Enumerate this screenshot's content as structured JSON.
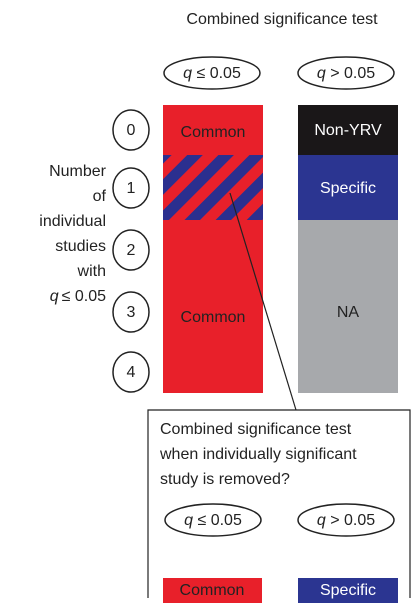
{
  "title": "Combined significance test",
  "header_tests": [
    {
      "var": "q",
      "cond": "≤ 0.05"
    },
    {
      "var": "q",
      "cond": "> 0.05"
    }
  ],
  "left_label": {
    "lines": [
      "Number",
      "of",
      "individual",
      "studies",
      "with"
    ],
    "last_var": "q",
    "last_cond": "≤ 0.05"
  },
  "study_counts": [
    "0",
    "1",
    "2",
    "3",
    "4"
  ],
  "significant_column": {
    "labels": [
      "Common",
      "Common"
    ]
  },
  "nonsignificant_column": {
    "labels": [
      "Non-YRV",
      "Specific",
      "NA"
    ]
  },
  "inset": {
    "lines": [
      "Combined significance test",
      "when individually significant",
      "study is removed?"
    ],
    "tests": [
      {
        "var": "q",
        "cond": "≤ 0.05"
      },
      {
        "var": "q",
        "cond": "> 0.05"
      }
    ],
    "results": [
      "Common",
      "Specific"
    ]
  }
}
